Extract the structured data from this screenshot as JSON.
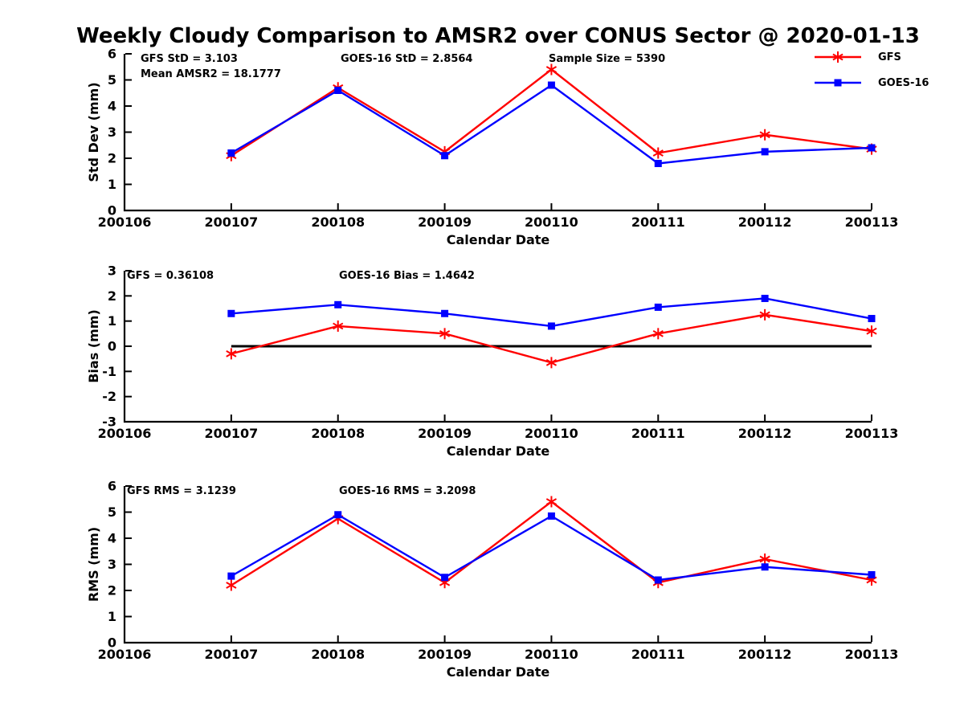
{
  "title": "Weekly Cloudy Comparison to AMSR2 over CONUS Sector @ 2020-01-13",
  "colors": {
    "gfs": "#ff0000",
    "goes16": "#0000ff",
    "axis": "#000000"
  },
  "legend": {
    "items": [
      {
        "label": "GFS",
        "marker": "asterisk",
        "color": "#ff0000"
      },
      {
        "label": "GOES-16",
        "marker": "square",
        "color": "#0000ff"
      }
    ]
  },
  "chart_data": [
    {
      "type": "line",
      "ylabel": "Std Dev (mm)",
      "xlabel": "Calendar Date",
      "ylim": [
        0,
        6
      ],
      "yticks": [
        "0",
        "1",
        "2",
        "3",
        "4",
        "5",
        "6"
      ],
      "xticks": [
        "200106",
        "200107",
        "200108",
        "200109",
        "200110",
        "200111",
        "200112",
        "200113"
      ],
      "x": [
        "200107",
        "200108",
        "200109",
        "200110",
        "200111",
        "200112",
        "200113"
      ],
      "series": [
        {
          "name": "GFS",
          "color": "#ff0000",
          "marker": "asterisk",
          "values": [
            2.1,
            4.7,
            2.25,
            5.4,
            2.2,
            2.9,
            2.35
          ]
        },
        {
          "name": "GOES-16",
          "color": "#0000ff",
          "marker": "square",
          "values": [
            2.2,
            4.6,
            2.1,
            4.8,
            1.8,
            2.25,
            2.4
          ]
        }
      ],
      "zero_line": false,
      "annotations": [
        {
          "text": "GFS StD = 3.103"
        },
        {
          "text": "Mean AMSR2 = 18.1777"
        },
        {
          "text": "GOES-16 StD = 2.8564"
        },
        {
          "text": "Sample Size = 5390"
        }
      ],
      "legend_position": "top-right-outside",
      "grid": false
    },
    {
      "type": "line",
      "ylabel": "Bias (mm)",
      "xlabel": "Calendar Date",
      "ylim": [
        -3,
        3
      ],
      "yticks": [
        "-3",
        "-2",
        "-1",
        "0",
        "1",
        "2",
        "3"
      ],
      "xticks": [
        "200106",
        "200107",
        "200108",
        "200109",
        "200110",
        "200111",
        "200112",
        "200113"
      ],
      "x": [
        "200107",
        "200108",
        "200109",
        "200110",
        "200111",
        "200112",
        "200113"
      ],
      "series": [
        {
          "name": "GFS",
          "color": "#ff0000",
          "marker": "asterisk",
          "values": [
            -0.3,
            0.8,
            0.5,
            -0.65,
            0.5,
            1.25,
            0.6
          ]
        },
        {
          "name": "GOES-16",
          "color": "#0000ff",
          "marker": "square",
          "values": [
            1.3,
            1.65,
            1.3,
            0.8,
            1.55,
            1.9,
            1.1
          ]
        }
      ],
      "zero_line": true,
      "annotations": [
        {
          "text": "GFS = 0.36108"
        },
        {
          "text": "GOES-16 Bias  = 1.4642"
        }
      ],
      "grid": false
    },
    {
      "type": "line",
      "ylabel": "RMS (mm)",
      "xlabel": "Calendar Date",
      "ylim": [
        0,
        6
      ],
      "yticks": [
        "0",
        "1",
        "2",
        "3",
        "4",
        "5",
        "6"
      ],
      "xticks": [
        "200106",
        "200107",
        "200108",
        "200109",
        "200110",
        "200111",
        "200112",
        "200113"
      ],
      "x": [
        "200107",
        "200108",
        "200109",
        "200110",
        "200111",
        "200112",
        "200113"
      ],
      "series": [
        {
          "name": "GFS",
          "color": "#ff0000",
          "marker": "asterisk",
          "values": [
            2.2,
            4.75,
            2.3,
            5.4,
            2.3,
            3.2,
            2.4
          ]
        },
        {
          "name": "GOES-16",
          "color": "#0000ff",
          "marker": "square",
          "values": [
            2.55,
            4.9,
            2.5,
            4.85,
            2.4,
            2.9,
            2.6
          ]
        }
      ],
      "zero_line": false,
      "annotations": [
        {
          "text": "GFS RMS = 3.1239"
        },
        {
          "text": "GOES-16 RMS = 3.2098"
        }
      ],
      "grid": false
    }
  ]
}
